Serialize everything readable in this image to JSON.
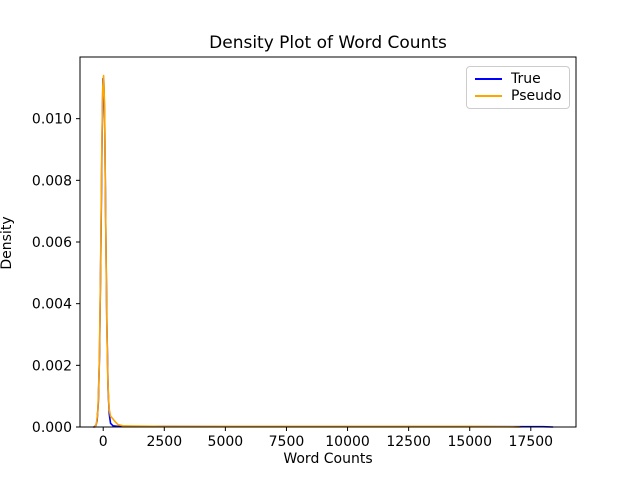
{
  "figure": {
    "background_color": "#ffffff",
    "axes_edge_color": "#000000"
  },
  "chart_data": {
    "type": "line",
    "title": "Density Plot of Word Counts",
    "xlabel": "Word Counts",
    "ylabel": "Density",
    "xlim": [
      -950,
      19350
    ],
    "ylim": [
      0,
      0.012
    ],
    "grid": false,
    "legend_position": "upper right",
    "legend_border_color": "#cccccc",
    "xticks": {
      "values": [
        0,
        2500,
        5000,
        7500,
        10000,
        12500,
        15000,
        17500
      ],
      "labels": [
        "0",
        "2500",
        "5000",
        "7500",
        "10000",
        "12500",
        "15000",
        "17500"
      ]
    },
    "yticks": {
      "values": [
        0.0,
        0.002,
        0.004,
        0.006,
        0.008,
        0.01
      ],
      "labels": [
        "0.000",
        "0.002",
        "0.004",
        "0.006",
        "0.008",
        "0.010"
      ]
    },
    "series": [
      {
        "name": "True",
        "color": "#0000ff",
        "peak_x": 0,
        "peak_y": 0.0113,
        "points": [
          [
            -380,
            0
          ],
          [
            -300,
            5e-05
          ],
          [
            -250,
            0.0002
          ],
          [
            -200,
            0.0008
          ],
          [
            -150,
            0.0024
          ],
          [
            -100,
            0.0055
          ],
          [
            -50,
            0.0092
          ],
          [
            -10,
            0.0113
          ],
          [
            20,
            0.0113
          ],
          [
            60,
            0.01
          ],
          [
            100,
            0.0068
          ],
          [
            150,
            0.0033
          ],
          [
            200,
            0.0012
          ],
          [
            250,
            0.0004
          ],
          [
            300,
            0.00012
          ],
          [
            400,
            4e-05
          ],
          [
            600,
            2e-05
          ],
          [
            1000,
            2e-05
          ],
          [
            2500,
            2e-05
          ],
          [
            5000,
            1e-05
          ],
          [
            7500,
            1e-05
          ],
          [
            10000,
            1e-05
          ],
          [
            12500,
            1e-05
          ],
          [
            15000,
            1e-05
          ],
          [
            17000,
            1e-05
          ],
          [
            18000,
            1e-05
          ],
          [
            18400,
            0
          ]
        ]
      },
      {
        "name": "Pseudo",
        "color": "#ffa500",
        "peak_x": 15,
        "peak_y": 0.0114,
        "points": [
          [
            -340,
            0
          ],
          [
            -280,
            0.0001
          ],
          [
            -220,
            0.0005
          ],
          [
            -160,
            0.002
          ],
          [
            -110,
            0.005
          ],
          [
            -60,
            0.0089
          ],
          [
            -20,
            0.011
          ],
          [
            15,
            0.0114
          ],
          [
            55,
            0.0104
          ],
          [
            95,
            0.0072
          ],
          [
            140,
            0.0037
          ],
          [
            190,
            0.0015
          ],
          [
            240,
            0.0006
          ],
          [
            300,
            0.00035
          ],
          [
            380,
            0.00028
          ],
          [
            480,
            0.00018
          ],
          [
            600,
            8e-05
          ],
          [
            800,
            4e-05
          ],
          [
            1200,
            3e-05
          ],
          [
            2500,
            2e-05
          ],
          [
            5000,
            2e-05
          ],
          [
            7500,
            2e-05
          ],
          [
            10000,
            2e-05
          ],
          [
            12500,
            2e-05
          ],
          [
            15000,
            2e-05
          ],
          [
            16500,
            1e-05
          ],
          [
            17060,
            0
          ]
        ]
      }
    ]
  }
}
